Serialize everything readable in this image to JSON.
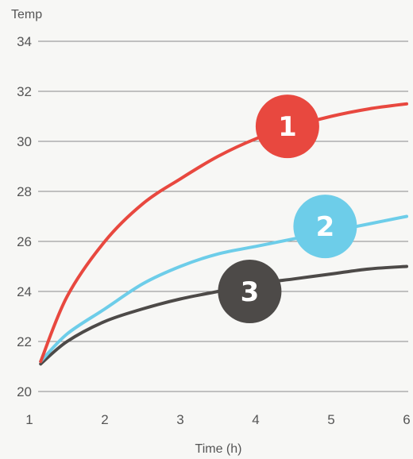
{
  "chart_data": {
    "type": "line",
    "ylabel": "Temp",
    "xlabel": "Time (h)",
    "xlim": [
      1,
      6
    ],
    "ylim": [
      20,
      34
    ],
    "x_ticks": [
      "1",
      "2",
      "3",
      "4",
      "5",
      "6"
    ],
    "y_ticks": [
      "20",
      "22",
      "24",
      "26",
      "28",
      "30",
      "32",
      "34"
    ],
    "grid": "horizontal",
    "series": [
      {
        "name": "1",
        "color": "#e8483f",
        "x": [
          1.15,
          1.5,
          2.0,
          2.5,
          3.0,
          3.5,
          4.0,
          4.5,
          5.0,
          5.5,
          6.0
        ],
        "y": [
          21.2,
          23.8,
          26.0,
          27.5,
          28.5,
          29.4,
          30.1,
          30.6,
          31.0,
          31.3,
          31.5
        ]
      },
      {
        "name": "2",
        "color": "#6dcde9",
        "x": [
          1.15,
          1.5,
          2.0,
          2.5,
          3.0,
          3.5,
          4.0,
          4.5,
          5.0,
          5.5,
          6.0
        ],
        "y": [
          21.2,
          22.3,
          23.3,
          24.3,
          25.0,
          25.5,
          25.8,
          26.1,
          26.4,
          26.7,
          27.0
        ]
      },
      {
        "name": "3",
        "color": "#4d4a48",
        "x": [
          1.15,
          1.5,
          2.0,
          2.5,
          3.0,
          3.5,
          4.0,
          4.5,
          5.0,
          5.5,
          6.0
        ],
        "y": [
          21.1,
          22.0,
          22.8,
          23.3,
          23.7,
          24.0,
          24.3,
          24.5,
          24.7,
          24.9,
          25.0
        ]
      }
    ],
    "badges": [
      {
        "label": "1",
        "color": "#e8483f",
        "x": 4.42,
        "y": 30.6
      },
      {
        "label": "2",
        "color": "#6dcde9",
        "x": 4.92,
        "y": 26.6
      },
      {
        "label": "3",
        "color": "#4d4a48",
        "x": 3.92,
        "y": 24.0
      }
    ]
  }
}
